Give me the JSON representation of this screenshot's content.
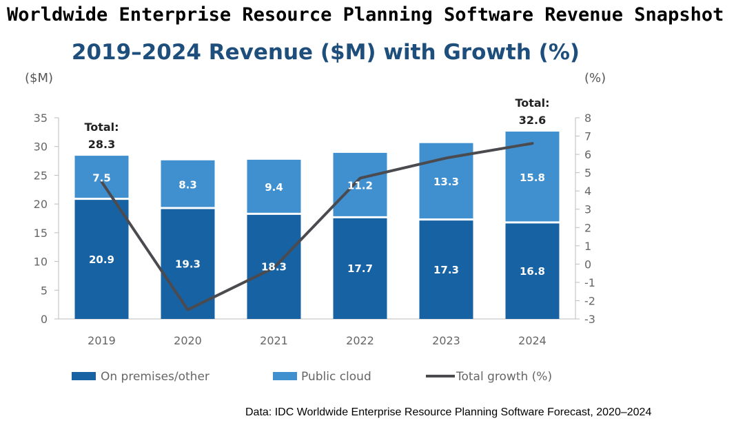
{
  "title": "Worldwide Enterprise Resource Planning Software Revenue Snapshot",
  "source": "Data: IDC Worldwide Enterprise Resource Planning Software Forecast, 2020–2024",
  "chart_data": {
    "type": "bar",
    "stacked": true,
    "title": "2019–2024 Revenue ($M) with Growth (%)",
    "y_left_unit": "($M)",
    "y_right_unit": "(%)",
    "categories": [
      "2019",
      "2020",
      "2021",
      "2022",
      "2023",
      "2024"
    ],
    "series": [
      {
        "name": "On premises/other",
        "kind": "bar",
        "axis": "left",
        "color": "#1762a3",
        "values": [
          20.9,
          19.3,
          18.3,
          17.7,
          17.3,
          16.8
        ]
      },
      {
        "name": "Public cloud",
        "kind": "bar",
        "axis": "left",
        "color": "#4090d0",
        "values": [
          7.5,
          8.3,
          9.4,
          11.2,
          13.3,
          15.8
        ]
      },
      {
        "name": "Total growth (%)",
        "kind": "line",
        "axis": "right",
        "color": "#4a4a4f",
        "values": [
          4.5,
          -2.5,
          -0.2,
          4.7,
          5.8,
          6.6
        ]
      }
    ],
    "totals": [
      {
        "index": 0,
        "label": "Total:",
        "value": "28.3"
      },
      {
        "index": 5,
        "label": "Total:",
        "value": "32.6"
      }
    ],
    "ylim_left": [
      0,
      35
    ],
    "yticks_left": [
      0,
      5,
      10,
      15,
      20,
      25,
      30,
      35
    ],
    "ylim_right": [
      -3,
      8
    ],
    "yticks_right": [
      -3,
      -2,
      -1,
      0,
      1,
      2,
      3,
      4,
      5,
      6,
      7,
      8
    ],
    "grid": false,
    "legend_position": "bottom"
  }
}
